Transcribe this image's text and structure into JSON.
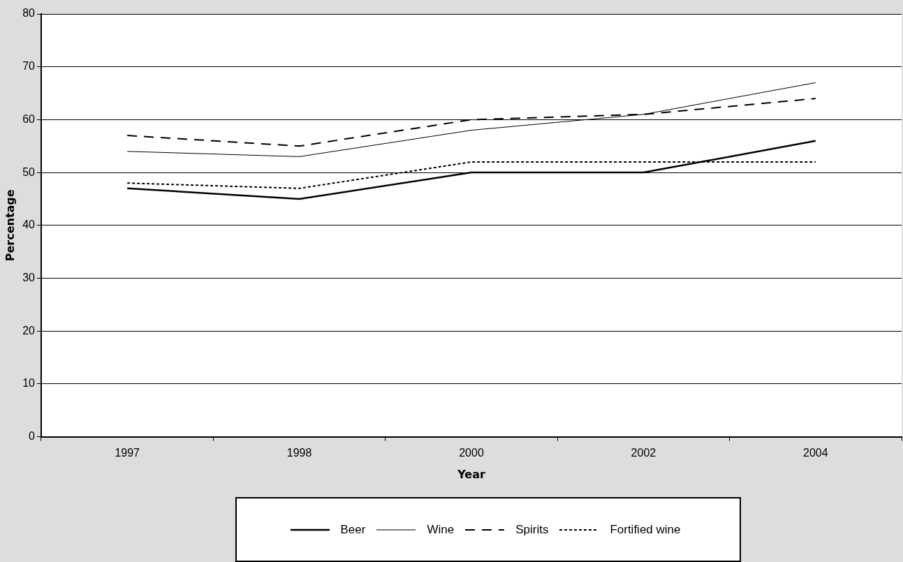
{
  "chart_data": {
    "type": "line",
    "xlabel": "Year",
    "ylabel": "Percentage",
    "categories": [
      "1997",
      "1998",
      "2000",
      "2002",
      "2004"
    ],
    "series": [
      {
        "name": "Beer",
        "color": "#000000",
        "line_style": "solid",
        "values": [
          47,
          45,
          50,
          50,
          56
        ]
      },
      {
        "name": "Wine",
        "color": "#000000",
        "line_style": "solid",
        "values": [
          54,
          53,
          58,
          61,
          67
        ]
      },
      {
        "name": "Spirits",
        "color": "#000000",
        "line_style": "dashed",
        "values": [
          57,
          55,
          60,
          61,
          64
        ]
      },
      {
        "name": "Fortified wine",
        "color": "#000000",
        "line_style": "dotted",
        "values": [
          48,
          47,
          52,
          52,
          52
        ]
      }
    ],
    "ylim": [
      0,
      80
    ],
    "yticks": [
      0,
      10,
      20,
      30,
      40,
      50,
      60,
      70,
      80
    ],
    "grid": "y",
    "legend": "bottom",
    "marker": "none"
  }
}
